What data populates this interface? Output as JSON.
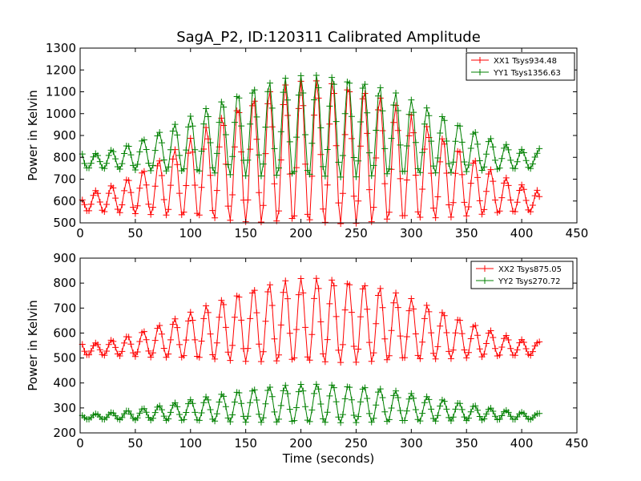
{
  "figure": {
    "title": "SagA_P2, ID:120311 Calibrated Amplitude"
  },
  "chart_data": [
    {
      "type": "line",
      "xlabel": "",
      "ylabel": "Power in Kelvin",
      "xlim": [
        0,
        450
      ],
      "ylim": [
        500,
        1300
      ],
      "xticks": [
        0,
        50,
        100,
        150,
        200,
        250,
        300,
        350,
        400,
        450
      ],
      "yticks": [
        500,
        600,
        700,
        800,
        900,
        1000,
        1100,
        1200,
        1300
      ],
      "legend_position": "top-right",
      "marker": "+",
      "x_start": 2,
      "x_end": 416,
      "x_step": 2,
      "oscillation_period_seconds": 14.3,
      "series": [
        {
          "name": "XX1 Tsys934.48",
          "color": "#ff0000",
          "baseline": 560,
          "peak_amplitude": 660,
          "first_value": 605,
          "last_value": 620
        },
        {
          "name": "YY1 Tsys1356.63",
          "color": "#008000",
          "baseline": 755,
          "peak_amplitude": 470,
          "first_value": 815,
          "last_value": 840
        }
      ]
    },
    {
      "type": "line",
      "xlabel": "Time (seconds)",
      "ylabel": "Power in Kelvin",
      "xlim": [
        0,
        450
      ],
      "ylim": [
        200,
        900
      ],
      "xticks": [
        0,
        50,
        100,
        150,
        200,
        250,
        300,
        350,
        400,
        450
      ],
      "yticks": [
        200,
        300,
        400,
        500,
        600,
        700,
        800,
        900
      ],
      "legend_position": "top-right",
      "marker": "+",
      "x_start": 2,
      "x_end": 416,
      "x_step": 2,
      "oscillation_period_seconds": 14.3,
      "series": [
        {
          "name": "XX2 Tsys875.05",
          "color": "#ff0000",
          "baseline": 515,
          "peak_amplitude": 340,
          "first_value": 555,
          "last_value": 565
        },
        {
          "name": "YY2 Tsys270.72",
          "color": "#008000",
          "baseline": 256,
          "peak_amplitude": 155,
          "first_value": 270,
          "last_value": 278
        }
      ]
    }
  ]
}
